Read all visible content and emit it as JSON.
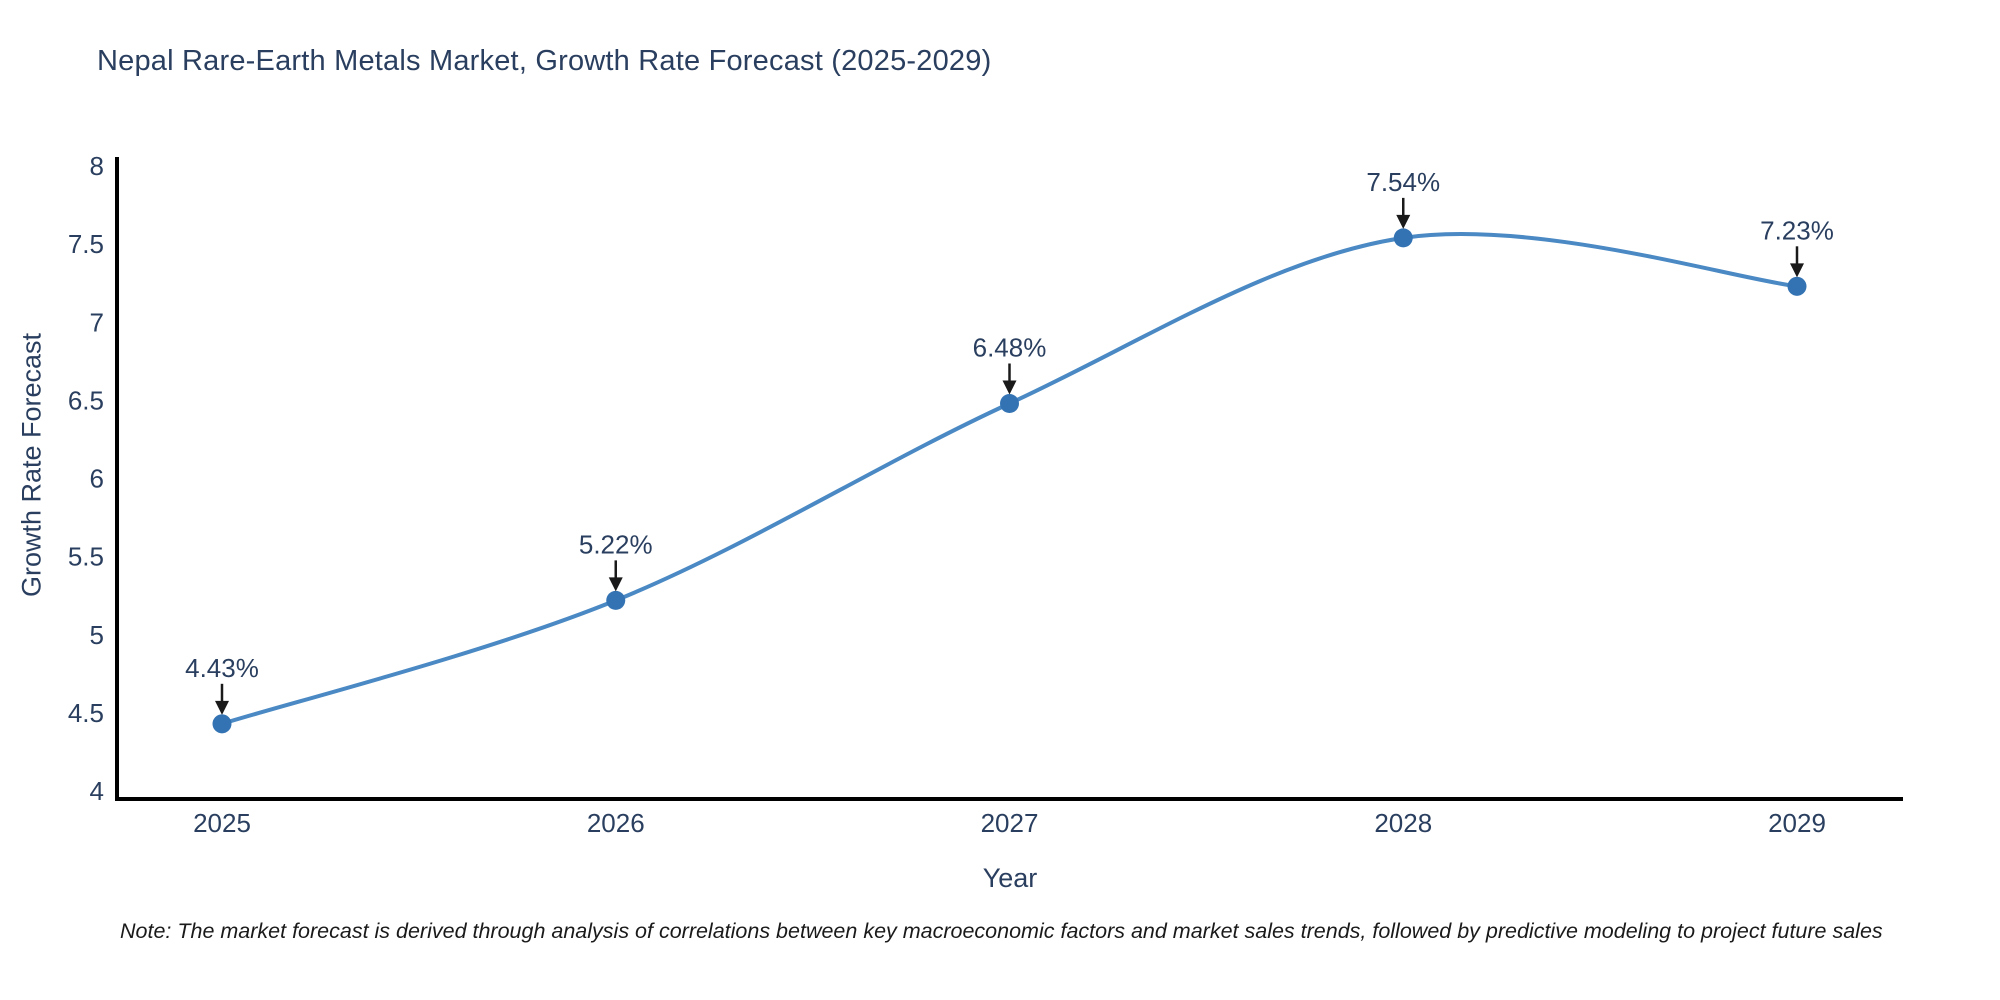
{
  "page": {
    "note": "Note: The market forecast is derived through analysis of correlations between key macroeconomic factors and market sales trends, followed by predictive modeling to project future sales"
  },
  "chart_data": {
    "type": "line",
    "title": "Nepal Rare-Earth Metals Market, Growth Rate Forecast (2025-2029)",
    "xlabel": "Year",
    "ylabel": "Growth Rate Forecast",
    "x": [
      2025,
      2026,
      2027,
      2028,
      2029
    ],
    "categories": [
      "2025",
      "2026",
      "2027",
      "2028",
      "2029"
    ],
    "values": [
      4.43,
      5.22,
      6.48,
      7.54,
      7.23
    ],
    "point_labels": [
      "4.43%",
      "5.22%",
      "6.48%",
      "7.54%",
      "7.23%"
    ],
    "ylim": [
      4,
      8
    ],
    "yticks": [
      4,
      4.5,
      5,
      5.5,
      6,
      6.5,
      7,
      7.5,
      8
    ],
    "ytick_labels": [
      "4",
      "4.5",
      "5",
      "5.5",
      "6",
      "6.5",
      "7",
      "7.5",
      "8"
    ],
    "line_shape": "spline",
    "grid": false,
    "legend_position": "none",
    "annotations_arrow": "down",
    "colors": {
      "line": "#4a89c4",
      "marker": "#3373b3",
      "axis": "#000000",
      "text": "#2a3f5f",
      "arrow": "#1a1a1a",
      "note_text": "#1a1a1a",
      "background": "#ffffff"
    }
  }
}
